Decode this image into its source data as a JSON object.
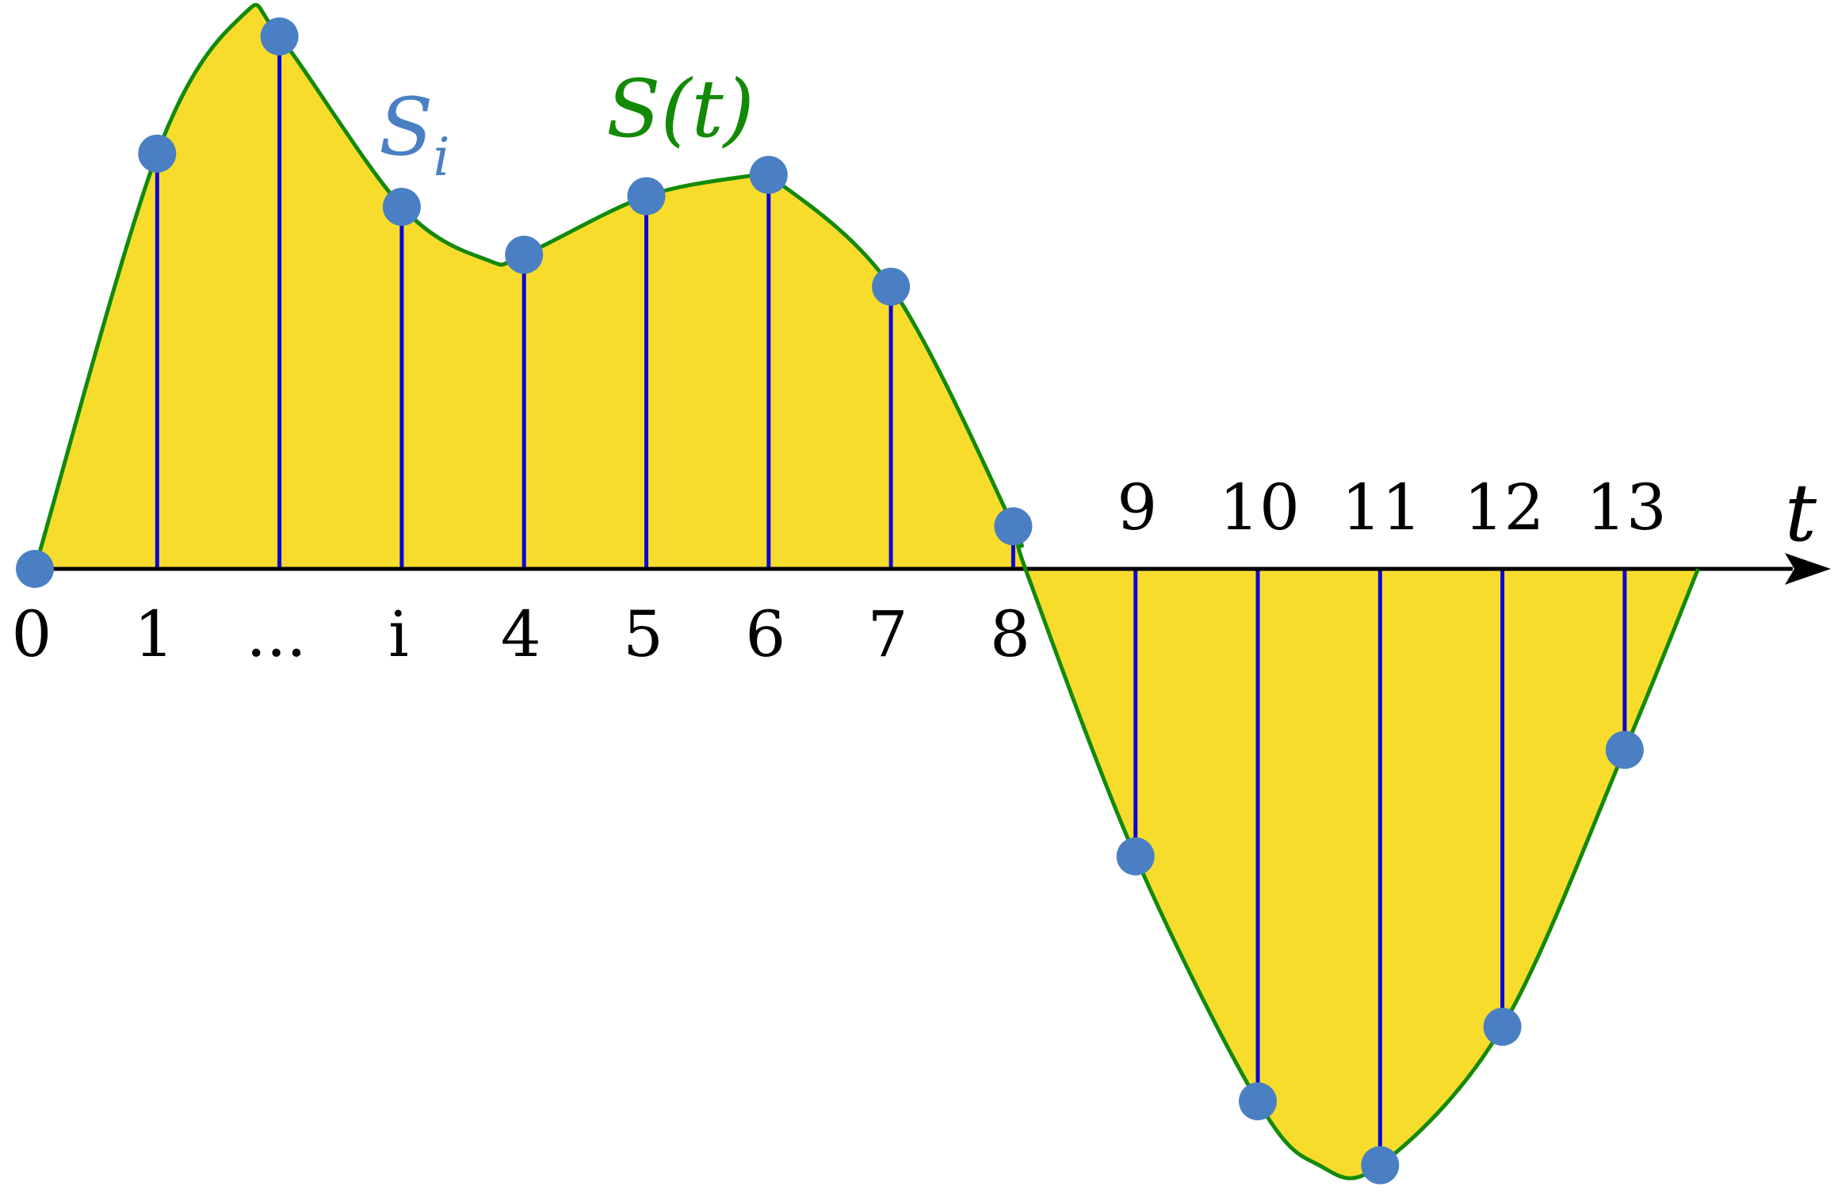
{
  "chart_data": {
    "type": "line",
    "title": "",
    "axis": {
      "label": "t"
    },
    "curve_label": "S(t)",
    "samples_label": {
      "base": "S",
      "subscript": "i"
    },
    "tick_labels_below": [
      "0",
      "1",
      "...",
      "i",
      "4",
      "5",
      "6",
      "7",
      "8"
    ],
    "tick_labels_above": [
      "9",
      "10",
      "11",
      "12",
      "13"
    ],
    "x": [
      0,
      1,
      2,
      3,
      4,
      5,
      6,
      7,
      8,
      9,
      10,
      11,
      12,
      13
    ],
    "samples": [
      0,
      0.78,
      1.0,
      0.68,
      0.59,
      0.7,
      0.74,
      0.53,
      0.08,
      -0.54,
      -1.0,
      -1.12,
      -0.86,
      -0.34
    ],
    "curve": {
      "x": [
        0,
        1,
        1.7,
        2,
        3,
        3.7,
        4,
        5,
        5.9,
        6,
        7,
        8,
        8.1,
        9,
        10,
        10.5,
        11,
        12,
        13,
        13.6
      ],
      "y": [
        0,
        0.78,
        1.04,
        1.0,
        0.68,
        0.58,
        0.59,
        0.7,
        0.74,
        0.74,
        0.53,
        0.08,
        0,
        -0.54,
        -1.0,
        -1.12,
        -1.12,
        -0.86,
        -0.34,
        0
      ]
    },
    "colors": {
      "curve": "#138a07",
      "fill": "#f8dc2c",
      "stems": "#0d05d4",
      "markers": "#4a7fc4",
      "axis": "#000000"
    }
  }
}
